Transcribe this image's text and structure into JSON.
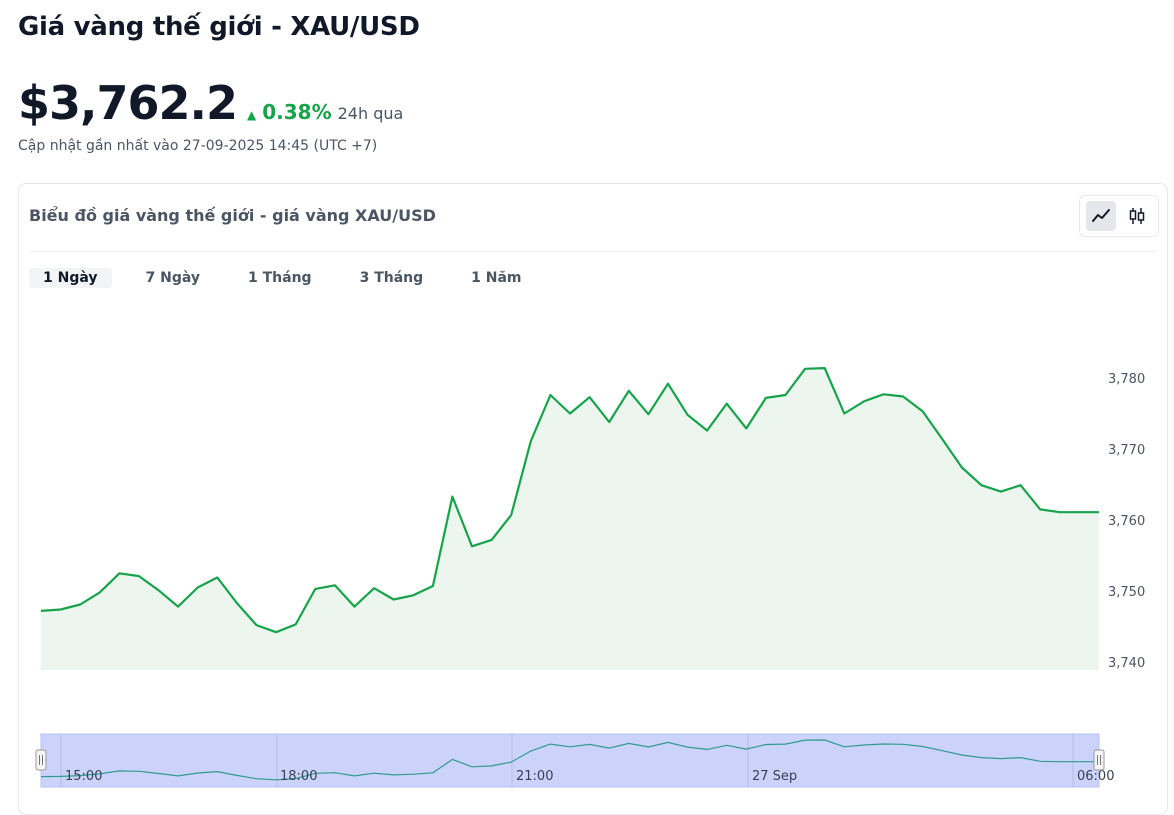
{
  "page": {
    "title": "Giá vàng thế giới - XAU/USD",
    "price": "$3,762.2",
    "change_arrow": "▲",
    "change_pct": "0.38%",
    "change_period": "24h qua",
    "updated": "Cập nhật gần nhất vào 27-09-2025 14:45 (UTC +7)"
  },
  "card": {
    "title": "Biểu đồ giá vàng thế giới - giá vàng XAU/USD",
    "chart_type_buttons": [
      {
        "name": "line-chart-icon",
        "active": true
      },
      {
        "name": "candlestick-icon",
        "active": false
      }
    ],
    "tabs": [
      {
        "label": "1 Ngày",
        "active": true
      },
      {
        "label": "7 Ngày",
        "active": false
      },
      {
        "label": "1 Tháng",
        "active": false
      },
      {
        "label": "3 Tháng",
        "active": false
      },
      {
        "label": "1 Năm",
        "active": false
      }
    ]
  },
  "colors": {
    "line": "#16a34a",
    "area": "#ecf6ef",
    "navigator_fill": "#ccd3fb",
    "navigator_line": "#2f9b8f"
  },
  "chart_data": {
    "type": "area",
    "y_ticks": [
      3740,
      3750,
      3760,
      3770,
      3780
    ],
    "y_tick_labels": [
      "3,740",
      "3,750",
      "3,760",
      "3,770",
      "3,780"
    ],
    "ylim": [
      3739,
      3782
    ],
    "y_axis_side": "right",
    "navigator_labels": [
      "15:00",
      "18:00",
      "21:00",
      "27 Sep",
      "06:00"
    ],
    "series": [
      {
        "values": [
          3747.2,
          3747.4,
          3748.1,
          3749.8,
          3752.5,
          3752.1,
          3750.1,
          3747.8,
          3750.5,
          3751.9,
          3748.3,
          3745.2,
          3744.2,
          3745.3,
          3750.3,
          3750.8,
          3747.8,
          3750.4,
          3748.8,
          3749.4,
          3750.7,
          3763.3,
          3756.3,
          3757.2,
          3760.7,
          3771.1,
          3777.6,
          3775.0,
          3777.3,
          3773.8,
          3778.2,
          3774.9,
          3779.2,
          3774.8,
          3772.6,
          3776.4,
          3772.9,
          3777.2,
          3777.6,
          3781.3,
          3781.4,
          3775.0,
          3776.7,
          3777.7,
          3777.4,
          3775.3,
          3771.4,
          3767.4,
          3764.9,
          3764.0,
          3764.9,
          3761.5,
          3761.1,
          3761.1,
          3761.1
        ]
      }
    ]
  }
}
